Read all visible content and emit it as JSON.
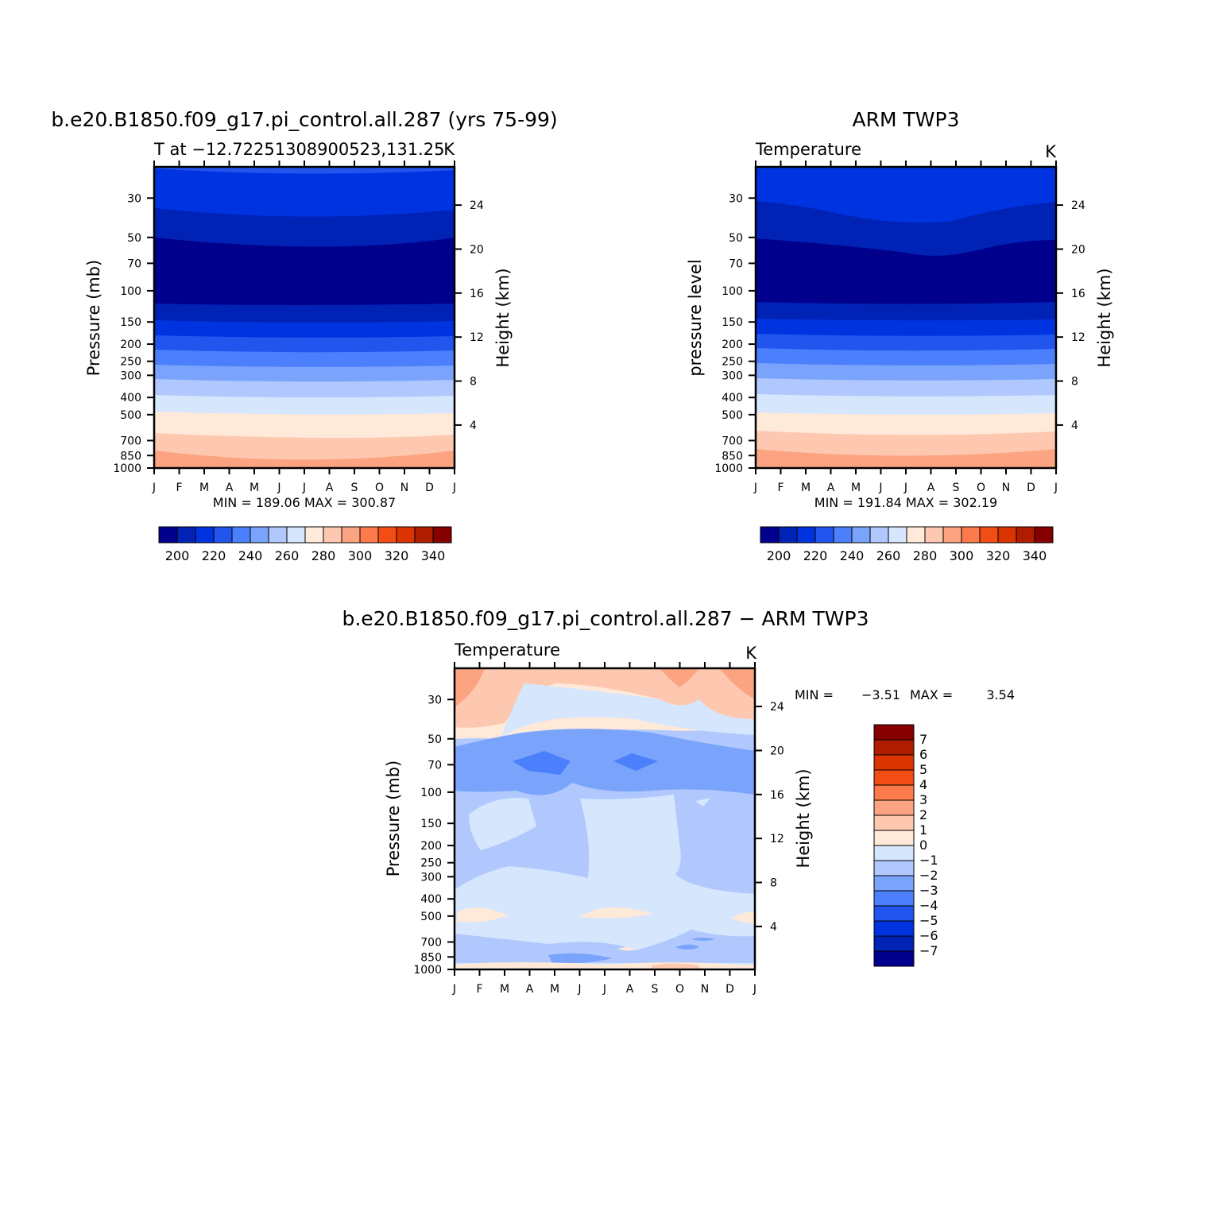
{
  "chart_data": [
    {
      "type": "contour",
      "title": "b.e20.B1850.f09_g17.pi_control.all.287 (yrs 75-99)",
      "subtitle_left": "T at −12.72251308900523,131.25",
      "units": "K",
      "ylabel": "Pressure (mb)",
      "ylabel_right": "Height (km)",
      "x_ticks": [
        "J",
        "F",
        "M",
        "A",
        "M",
        "J",
        "J",
        "A",
        "S",
        "O",
        "N",
        "D",
        "J"
      ],
      "y_ticks": [
        "30",
        "50",
        "70",
        "100",
        "150",
        "200",
        "250",
        "300",
        "400",
        "500",
        "700",
        "850",
        "1000"
      ],
      "y_right_ticks": [
        "24",
        "20",
        "16",
        "12",
        "8",
        "4"
      ],
      "stats": "MIN = 189.06 MAX = 300.87",
      "min": 189.06,
      "max": 300.87,
      "colorbar_labels": [
        "200",
        "220",
        "240",
        "260",
        "280",
        "300",
        "320",
        "340"
      ],
      "colorbar_colors": [
        "#00008c",
        "#0022b5",
        "#0033e0",
        "#2255ee",
        "#4b7ffb",
        "#7aa4fc",
        "#b0c8fd",
        "#d6e6fd",
        "#ffe9d8",
        "#fec8b0",
        "#fca482",
        "#fc7a4c",
        "#f24d14",
        "#dc3400",
        "#b01c00",
        "#860000"
      ]
    },
    {
      "type": "contour",
      "title": "ARM TWP3",
      "subtitle_left": "Temperature",
      "units": "K",
      "ylabel": "pressure level",
      "ylabel_right": "Height (km)",
      "x_ticks": [
        "J",
        "F",
        "M",
        "A",
        "M",
        "J",
        "J",
        "A",
        "S",
        "O",
        "N",
        "D",
        "J"
      ],
      "y_ticks": [
        "30",
        "50",
        "70",
        "100",
        "150",
        "200",
        "250",
        "300",
        "400",
        "500",
        "700",
        "850",
        "1000"
      ],
      "y_right_ticks": [
        "24",
        "20",
        "16",
        "12",
        "8",
        "4"
      ],
      "stats": "MIN = 191.84 MAX = 302.19",
      "min": 191.84,
      "max": 302.19,
      "colorbar_labels": [
        "200",
        "220",
        "240",
        "260",
        "280",
        "300",
        "320",
        "340"
      ],
      "colorbar_colors": [
        "#00008c",
        "#0022b5",
        "#0033e0",
        "#2255ee",
        "#4b7ffb",
        "#7aa4fc",
        "#b0c8fd",
        "#d6e6fd",
        "#ffe9d8",
        "#fec8b0",
        "#fca482",
        "#fc7a4c",
        "#f24d14",
        "#dc3400",
        "#b01c00",
        "#860000"
      ]
    },
    {
      "type": "contour",
      "title": "b.e20.B1850.f09_g17.pi_control.all.287 − ARM TWP3",
      "subtitle_left": "Temperature",
      "units": "K",
      "ylabel": "Pressure (mb)",
      "ylabel_right": "Height (km)",
      "x_ticks": [
        "J",
        "F",
        "M",
        "A",
        "M",
        "J",
        "J",
        "A",
        "S",
        "O",
        "N",
        "D",
        "J"
      ],
      "y_ticks": [
        "30",
        "50",
        "70",
        "100",
        "150",
        "200",
        "250",
        "300",
        "400",
        "500",
        "700",
        "850",
        "1000"
      ],
      "y_right_ticks": [
        "24",
        "20",
        "16",
        "12",
        "8",
        "4"
      ],
      "stats_min_label": "MIN =",
      "stats_min_value": "−3.51",
      "stats_max_label": "MAX =",
      "stats_max_value": "3.54",
      "min": -3.51,
      "max": 3.54,
      "colorbar_labels": [
        "7",
        "6",
        "5",
        "4",
        "3",
        "2",
        "1",
        "0",
        "−1",
        "−2",
        "−3",
        "−4",
        "−5",
        "−6",
        "−7"
      ],
      "colorbar_colors": [
        "#860000",
        "#b01c00",
        "#dc3400",
        "#f24d14",
        "#fc7a4c",
        "#fca482",
        "#fec8b0",
        "#ffe9d8",
        "#d6e6fd",
        "#b0c8fd",
        "#7aa4fc",
        "#4b7ffb",
        "#2255ee",
        "#0033e0",
        "#0022b5",
        "#00008c"
      ]
    }
  ]
}
